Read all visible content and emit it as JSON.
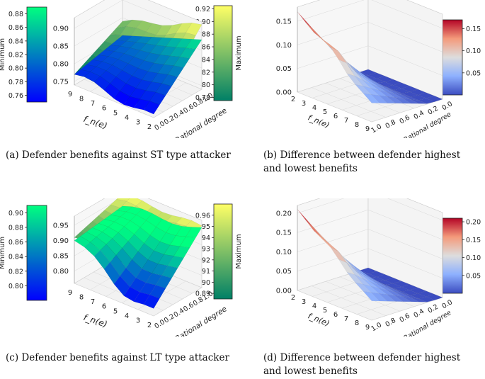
{
  "chart_data": [
    {
      "type": "surface3d",
      "panel_label": "(a)",
      "caption": "Defender benefits against ST type attacker",
      "xlabel": "f_n(e)",
      "ylabel": "Rational degree",
      "x_ticks": [
        "9",
        "8",
        "7",
        "6",
        "5",
        "4",
        "3",
        "2"
      ],
      "y_ticks": [
        "0.0",
        "0.2",
        "0.4",
        "0.6",
        "0.8",
        "1.0"
      ],
      "z_ticks": [
        "0.75",
        "0.80",
        "0.85",
        "0.90"
      ],
      "zlim": [
        0.74,
        0.93
      ],
      "colorbars": [
        {
          "label": "Minimum",
          "colormap": "winter",
          "ticks": [
            "0.88",
            "0.86",
            "0.84",
            "0.82",
            "0.80",
            "0.78",
            "0.76"
          ],
          "range": [
            0.75,
            0.89
          ]
        },
        {
          "label": "Maximum",
          "colormap": "summer",
          "ticks": [
            "0.92",
            "0.90",
            "0.88",
            "0.86",
            "0.84",
            "0.82",
            "0.80",
            "0.78"
          ],
          "range": [
            0.775,
            0.925
          ]
        }
      ],
      "series": [
        {
          "name": "Minimum",
          "corners": {
            "fn9_r0": 0.77,
            "fn2_r0": 0.74,
            "fn9_r1": 0.8,
            "fn2_r1": 0.88
          }
        },
        {
          "name": "Maximum",
          "corners": {
            "fn9_r0": 0.77,
            "fn2_r0": 0.75,
            "fn9_r1": 0.84,
            "fn2_r1": 0.92
          }
        }
      ]
    },
    {
      "type": "surface3d",
      "panel_label": "(b)",
      "caption": "Difference between defender highest",
      "caption_line2": "and lowest benefits",
      "xlabel": "f_n(e)",
      "ylabel": "Rational degree",
      "x_ticks": [
        "2",
        "3",
        "4",
        "5",
        "6",
        "7",
        "8",
        "9"
      ],
      "y_ticks": [
        "1.0",
        "0.8",
        "0.6",
        "0.4",
        "0.2",
        "0.0"
      ],
      "z_ticks": [
        "0.00",
        "0.05",
        "0.10",
        "0.15"
      ],
      "zlim": [
        0,
        0.18
      ],
      "colorbars": [
        {
          "label": "",
          "colormap": "coolwarm",
          "ticks": [
            "0.15",
            "0.10",
            "0.05"
          ],
          "range": [
            0.0,
            0.17
          ]
        }
      ],
      "series": [
        {
          "name": "Difference",
          "corners": {
            "fn2_r1": 0.17,
            "fn9_r1": 0.04,
            "fn2_r0": 0.01,
            "fn9_r0": 0.0
          }
        }
      ]
    },
    {
      "type": "surface3d",
      "panel_label": "(c)",
      "caption": "Defender benefits against LT type attacker",
      "xlabel": "f_n(e)",
      "ylabel": "Rational degree",
      "x_ticks": [
        "9",
        "8",
        "7",
        "6",
        "5",
        "4",
        "3",
        "2"
      ],
      "y_ticks": [
        "0.0",
        "0.2",
        "0.4",
        "0.6",
        "0.8",
        "1.0"
      ],
      "z_ticks": [
        "0.80",
        "0.85",
        "0.90",
        "0.95"
      ],
      "zlim": [
        0.76,
        0.98
      ],
      "colorbars": [
        {
          "label": "Minimum",
          "colormap": "winter",
          "ticks": [
            "0.90",
            "0.88",
            "0.86",
            "0.84",
            "0.82",
            "0.80"
          ],
          "range": [
            0.78,
            0.91
          ]
        },
        {
          "label": "Maximum",
          "colormap": "summer",
          "ticks": [
            "0.96",
            "0.95",
            "0.94",
            "0.93",
            "0.92",
            "0.91",
            "0.90",
            "0.89"
          ],
          "range": [
            0.885,
            0.97
          ]
        }
      ],
      "series": [
        {
          "name": "Minimum",
          "corners": {
            "fn9_r0": 0.9,
            "fn2_r0": 0.78,
            "fn9_r1": 0.92,
            "fn2_r1": 0.95
          }
        },
        {
          "name": "Maximum",
          "corners": {
            "fn9_r0": 0.91,
            "fn2_r0": 0.89,
            "fn9_r1": 0.96,
            "fn2_r1": 0.96
          }
        }
      ]
    },
    {
      "type": "surface3d",
      "panel_label": "(d)",
      "caption": "Difference between defender highest",
      "caption_line2": "and lowest benefits",
      "xlabel": "f_n(e)",
      "ylabel": "Rational degree",
      "x_ticks": [
        "2",
        "3",
        "4",
        "5",
        "6",
        "7",
        "8",
        "9"
      ],
      "y_ticks": [
        "1.0",
        "0.8",
        "0.6",
        "0.4",
        "0.2",
        "0.0"
      ],
      "z_ticks": [
        "0.00",
        "0.05",
        "0.10",
        "0.15",
        "0.20"
      ],
      "zlim": [
        0,
        0.22
      ],
      "colorbars": [
        {
          "label": "",
          "colormap": "coolwarm",
          "ticks": [
            "0.20",
            "0.15",
            "0.10",
            "0.05"
          ],
          "range": [
            0.0,
            0.21
          ]
        }
      ],
      "series": [
        {
          "name": "Difference",
          "corners": {
            "fn2_r1": 0.21,
            "fn9_r1": 0.05,
            "fn2_r0": 0.01,
            "fn9_r0": 0.0
          }
        }
      ]
    }
  ]
}
